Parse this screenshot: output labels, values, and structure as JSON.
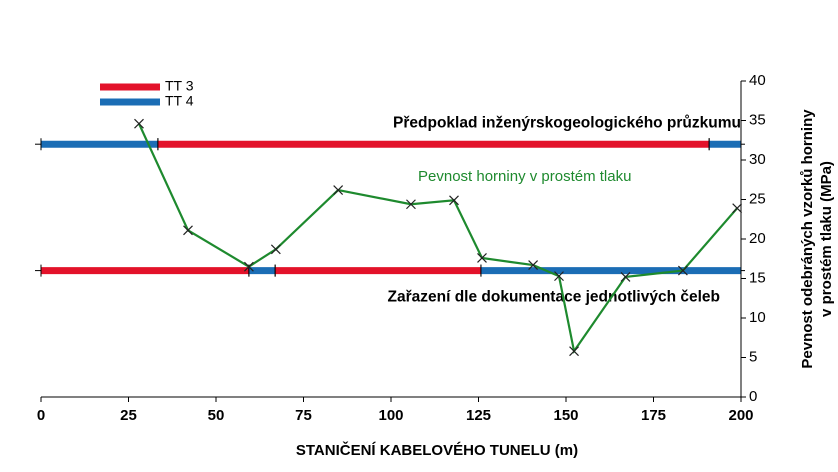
{
  "chart_data": {
    "type": "line",
    "xlabel": "STANIČENÍ KABELOVÉHO TUNELU (m)",
    "ylabel": [
      "Pevnost odebráných vzorků horniny",
      "v prostém tlaku (MPa)"
    ],
    "xlim": [
      0,
      200
    ],
    "xticks": [
      0,
      25,
      50,
      75,
      100,
      125,
      150,
      175,
      200
    ],
    "ylim": [
      0,
      40
    ],
    "yticks": [
      0,
      5,
      10,
      15,
      20,
      25,
      30,
      35,
      40
    ],
    "legend": [
      {
        "name": "TT 3",
        "color": "#e3122a"
      },
      {
        "name": "TT 4",
        "color": "#1b6db5"
      }
    ],
    "series": [
      {
        "name": "Pevnost horniny v prostém tlaku",
        "color": "#1e8a2e",
        "x": [
          28,
          42,
          59.4,
          67.1,
          84.9,
          105.7,
          118,
          126,
          140.6,
          148,
          152.3,
          167,
          183.4,
          198.9
        ],
        "values": [
          34.6,
          21.1,
          16.5,
          18.7,
          26.2,
          24.4,
          24.9,
          17.6,
          16.7,
          15.3,
          5.8,
          15.2,
          16,
          23.9
        ]
      }
    ],
    "bands": [
      {
        "label": "Předpoklad inženýrskogeologického průzkumu",
        "y": 32,
        "segments": [
          {
            "x": [
              0,
              33.4
            ],
            "legend": 1
          },
          {
            "x": [
              33.4,
              190.9
            ],
            "legend": 0
          },
          {
            "x": [
              190.9,
              200
            ],
            "legend": 1
          }
        ]
      },
      {
        "label": "Zařazení dle dokumentace jednotlivých čeleb",
        "y": 16,
        "segments": [
          {
            "x": [
              0,
              59.4
            ],
            "legend": 0
          },
          {
            "x": [
              59.4,
              66.9
            ],
            "legend": 1
          },
          {
            "x": [
              66.9,
              125.7
            ],
            "legend": 0
          },
          {
            "x": [
              125.7,
              200
            ],
            "legend": 1
          }
        ]
      }
    ]
  }
}
